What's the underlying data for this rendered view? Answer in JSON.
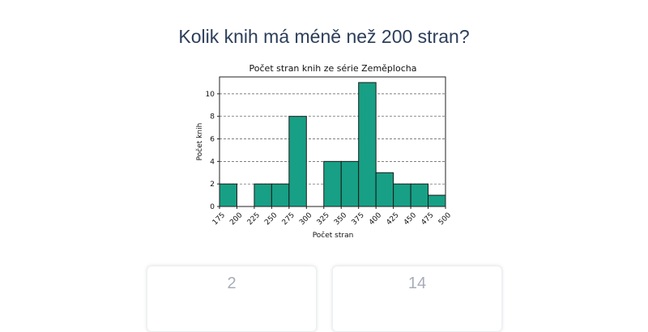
{
  "question": "Kolik knih má méně než 200 stran?",
  "answers": [
    "2",
    "14"
  ],
  "chart_data": {
    "type": "bar",
    "title": "Počet stran knih ze série Zeměplocha",
    "xlabel": "Počet stran",
    "ylabel": "Počet knih",
    "bin_edges": [
      175,
      200,
      225,
      250,
      275,
      300,
      325,
      350,
      375,
      400,
      425,
      450,
      475,
      500
    ],
    "values": [
      2,
      0,
      2,
      2,
      8,
      0,
      4,
      4,
      11,
      3,
      2,
      2,
      1
    ],
    "xticks": [
      "175",
      "200",
      "225",
      "250",
      "275",
      "300",
      "325",
      "350",
      "375",
      "400",
      "425",
      "450",
      "475",
      "500"
    ],
    "yticks": [
      "0",
      "2",
      "4",
      "6",
      "8",
      "10"
    ],
    "ylim": [
      0,
      11.5
    ],
    "grid": "horizontal dashed",
    "bar_color": "#17a085",
    "bar_edge_color": "#1a1a1a"
  }
}
